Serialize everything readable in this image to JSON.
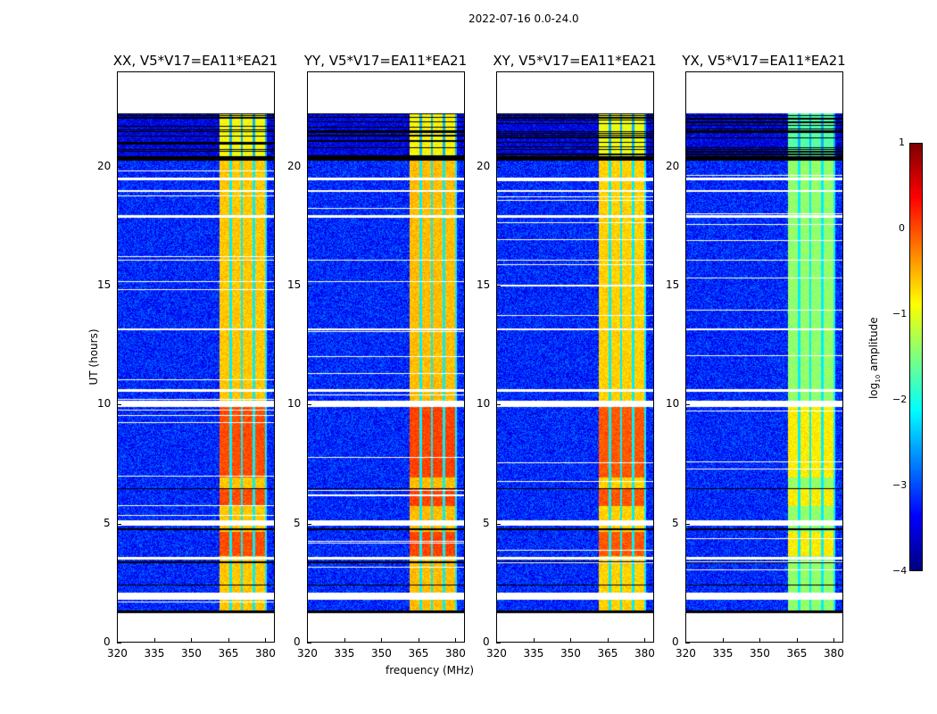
{
  "chart_data": {
    "type": "heatmap",
    "title": "2022-07-16 0.0-24.0",
    "xlabel": "frequency (MHz)",
    "ylabel": "UT (hours)",
    "xlim": [
      320,
      384
    ],
    "ylim": [
      0,
      24
    ],
    "xticks": [
      "320",
      "335",
      "350",
      "365",
      "380"
    ],
    "yticks": [
      "0",
      "5",
      "10",
      "15",
      "20"
    ],
    "panels": [
      {
        "title": "XX, V5*V17=EA11*EA21",
        "band_peak": 0.2
      },
      {
        "title": "YY, V5*V17=EA11*EA21",
        "band_peak": 0.25
      },
      {
        "title": "XY, V5*V17=EA11*EA21",
        "band_peak": 0.15
      },
      {
        "title": "YX, V5*V17=EA11*EA21",
        "band_peak": -0.6
      }
    ],
    "data_time_range_hours": [
      1.3,
      22.3
    ],
    "rfi_band_mhz": [
      361,
      381
    ],
    "background_log_amplitude": -3.2,
    "colorbar": {
      "label_main": "log",
      "label_sub": "10",
      "label_rest": " amplitude",
      "range": [
        -4,
        1
      ],
      "ticks": [
        "−4",
        "−3",
        "−2",
        "−1",
        "0",
        "1"
      ]
    }
  }
}
